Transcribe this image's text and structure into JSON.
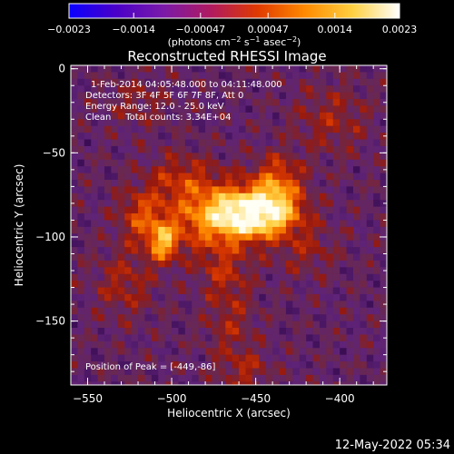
{
  "chart_data": {
    "type": "heatmap",
    "title": "Reconstructed RHESSI Image",
    "colorbar": {
      "ticks": [
        "-0.0023",
        "-0.0014",
        "-0.00047",
        "0.00047",
        "0.0014",
        "0.0023"
      ],
      "range": [
        -0.0023,
        0.0023
      ],
      "colors": [
        "#0a00ff",
        "#4a00c8",
        "#7a1aa8",
        "#b01a60",
        "#e03a00",
        "#ff8a00",
        "#ffd040",
        "#ffffff"
      ]
    },
    "colorbar_unit_parts": {
      "prefix": "(photons cm",
      "exp1": "−2",
      "mid1": " s",
      "exp2": "−1",
      "mid2": " asec",
      "exp3": "−2",
      "suffix": ")"
    },
    "info_lines": [
      "1-Feb-2014 04:05:48.000 to 04:11:48.000",
      "Detectors: 3F 4F 5F 6F 7F 8F, Att 0",
      "Energy Range: 12.0 - 25.0 keV",
      "Clean     Total counts: 3.34E+04"
    ],
    "peak_label": "Position of Peak = [-449,-86]",
    "peak": {
      "x": -449,
      "y": -86
    },
    "xlabel": "Heliocentric X (arcsec)",
    "ylabel": "Heliocentric Y (arcsec)",
    "xlim": [
      -560,
      -372
    ],
    "ylim": [
      -188,
      2
    ],
    "xticks": [
      {
        "v": -550,
        "label": "−550"
      },
      {
        "v": -500,
        "label": "−500"
      },
      {
        "v": -450,
        "label": "−450"
      },
      {
        "v": -400,
        "label": "−400"
      }
    ],
    "yticks": [
      {
        "v": 0,
        "label": "0"
      },
      {
        "v": -50,
        "label": "−50"
      },
      {
        "v": -100,
        "label": "−100"
      },
      {
        "v": -150,
        "label": "−150"
      }
    ],
    "sources": [
      {
        "x": -449,
        "y": -86,
        "amp": 1.0,
        "sx": 16,
        "sy": 9
      },
      {
        "x": -474,
        "y": -88,
        "amp": 0.55,
        "sx": 20,
        "sy": 14
      },
      {
        "x": -437,
        "y": -68,
        "amp": 0.45,
        "sx": 10,
        "sy": 11
      },
      {
        "x": -505,
        "y": -103,
        "amp": 0.62,
        "sx": 6,
        "sy": 8
      },
      {
        "x": -518,
        "y": -88,
        "amp": 0.35,
        "sx": 9,
        "sy": 11
      },
      {
        "x": -495,
        "y": -65,
        "amp": 0.25,
        "sx": 14,
        "sy": 10
      },
      {
        "x": -528,
        "y": -128,
        "amp": 0.22,
        "sx": 12,
        "sy": 14
      },
      {
        "x": -470,
        "y": -120,
        "amp": 0.2,
        "sx": 10,
        "sy": 10
      },
      {
        "x": -420,
        "y": -108,
        "amp": 0.18,
        "sx": 12,
        "sy": 10
      },
      {
        "x": -465,
        "y": -150,
        "amp": 0.2,
        "sx": 10,
        "sy": 18
      },
      {
        "x": -405,
        "y": -30,
        "amp": 0.2,
        "sx": 15,
        "sy": 14
      },
      {
        "x": -520,
        "y": -20,
        "amp": 0.15,
        "sx": 12,
        "sy": 10
      },
      {
        "x": -455,
        "y": -180,
        "amp": 0.2,
        "sx": 10,
        "sy": 8
      }
    ]
  },
  "timestamp": "12-May-2022 05:34"
}
